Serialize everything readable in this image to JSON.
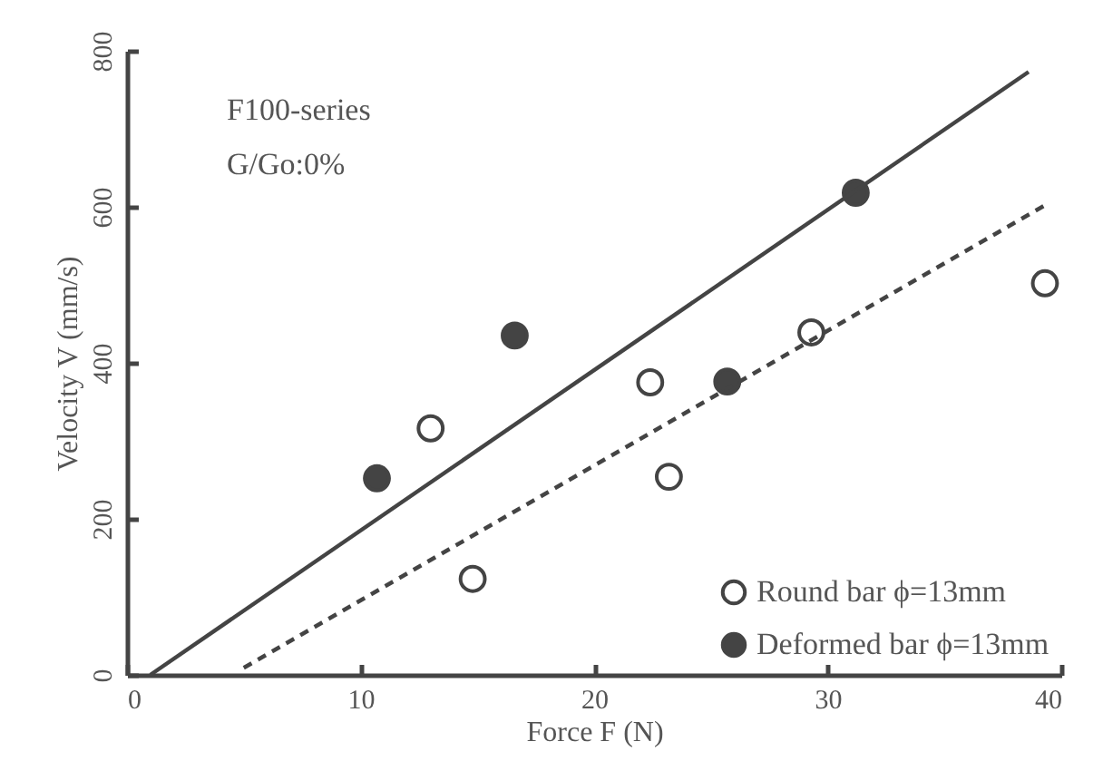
{
  "chart_data": {
    "type": "scatter",
    "xlabel": "Force F (N)",
    "ylabel": "Velocity V (mm/s)",
    "annotations": [
      "F100-series",
      "G/Go:0%"
    ],
    "xlim": [
      0,
      40
    ],
    "xticks": [
      0,
      10,
      20,
      30,
      40
    ],
    "ylim": [
      0,
      800
    ],
    "yticks": [
      0,
      200,
      400,
      600,
      800
    ],
    "grid": false,
    "legend": "bottom right",
    "marker": "circle",
    "series": [
      {
        "name": "Round bar ϕ=13mm",
        "color": "#ffffff",
        "x": [
          13.0,
          14.8,
          22.4,
          23.2,
          29.3,
          39.3
        ],
        "values": [
          316,
          123,
          375,
          254,
          439,
          502
        ]
      },
      {
        "name": "Deformed bar ϕ=13mm",
        "color": "#444444",
        "x": [
          10.7,
          16.6,
          25.7,
          31.2
        ],
        "values": [
          252,
          435,
          376,
          618
        ]
      },
      {
        "type": "line",
        "marker": "none",
        "color": "#444444",
        "line_style": "solid",
        "x": [
          1.0,
          38.6
        ],
        "values": [
          0,
          773
        ]
      },
      {
        "type": "line",
        "marker": "none",
        "color": "#444444",
        "line_style": "dashed",
        "x": [
          5.0,
          39.3
        ],
        "values": [
          9,
          602
        ]
      }
    ]
  }
}
